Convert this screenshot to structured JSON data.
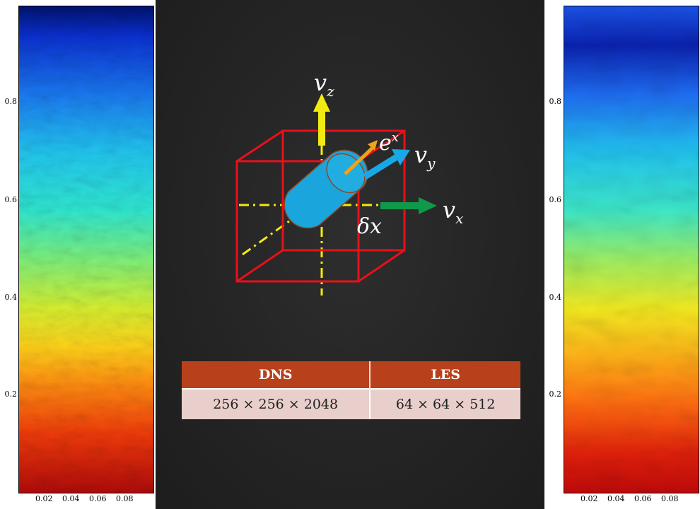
{
  "colors": {
    "background_center": "#262626",
    "table_header": "#b8411b",
    "table_row": "#e9cfcb",
    "cube": "#e8101a",
    "axis_z": "#f3ea12",
    "axis_y": "#19a8e6",
    "axis_x": "#0e9a4a",
    "axis_e": "#f0a21a",
    "cylinder": "#1aa6dc"
  },
  "left_panel": {
    "y_ticks": [
      "0.8",
      "0.6",
      "0.4",
      "0.2"
    ],
    "x_ticks": [
      "0.02",
      "0.04",
      "0.06",
      "0.08"
    ]
  },
  "right_panel": {
    "y_ticks": [
      "0.8",
      "0.6",
      "0.4",
      "0.2"
    ],
    "x_ticks": [
      "0.02",
      "0.04",
      "0.06",
      "0.08"
    ]
  },
  "diagram": {
    "vz": "v",
    "vz_sub": "z",
    "vy": "v",
    "vy_sub": "y",
    "vx": "v",
    "vx_sub": "x",
    "e_label": "e",
    "e_sup": "x",
    "dx_label": "δx"
  },
  "table": {
    "headers": [
      "DNS",
      "LES"
    ],
    "row": [
      "256 × 256 × 2048",
      "64 × 64 × 512"
    ]
  }
}
